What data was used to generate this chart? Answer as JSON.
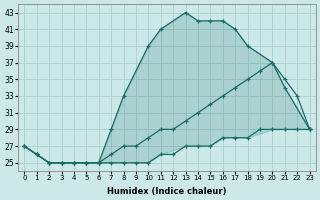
{
  "xlabel": "Humidex (Indice chaleur)",
  "bg_color": "#cce8e8",
  "grid_color": "#aacece",
  "line_color": "#1a6b6b",
  "xlim": [
    -0.5,
    23.5
  ],
  "ylim": [
    24,
    44
  ],
  "yticks": [
    25,
    27,
    29,
    31,
    33,
    35,
    37,
    39,
    41,
    43
  ],
  "xticks": [
    0,
    1,
    2,
    3,
    4,
    5,
    6,
    7,
    8,
    9,
    10,
    11,
    12,
    13,
    14,
    15,
    16,
    17,
    18,
    19,
    20,
    21,
    22,
    23
  ],
  "curve1_x": [
    0,
    1,
    2,
    3,
    4,
    5,
    6,
    7,
    8,
    10,
    11,
    13,
    14,
    15,
    16,
    17,
    18,
    20,
    21,
    23
  ],
  "curve1_y": [
    27,
    26,
    25,
    25,
    25,
    25,
    25,
    29,
    33,
    39,
    41,
    43,
    42,
    42,
    42,
    41,
    39,
    37,
    34,
    29
  ],
  "curve2_x": [
    0,
    1,
    2,
    3,
    4,
    5,
    6,
    7,
    8,
    9,
    10,
    11,
    12,
    13,
    14,
    15,
    16,
    17,
    18,
    19,
    20,
    21,
    22,
    23
  ],
  "curve2_y": [
    27,
    26,
    25,
    25,
    25,
    25,
    25,
    26,
    27,
    27,
    28,
    29,
    29,
    30,
    31,
    32,
    33,
    34,
    35,
    36,
    37,
    35,
    33,
    29
  ],
  "curve3_x": [
    0,
    1,
    2,
    3,
    4,
    5,
    6,
    7,
    8,
    9,
    10,
    11,
    12,
    13,
    14,
    15,
    16,
    17,
    18,
    19,
    20,
    21,
    22,
    23
  ],
  "curve3_y": [
    27,
    26,
    25,
    25,
    25,
    25,
    25,
    25,
    25,
    25,
    25,
    26,
    26,
    27,
    27,
    27,
    28,
    28,
    28,
    29,
    29,
    29,
    29,
    29
  ]
}
